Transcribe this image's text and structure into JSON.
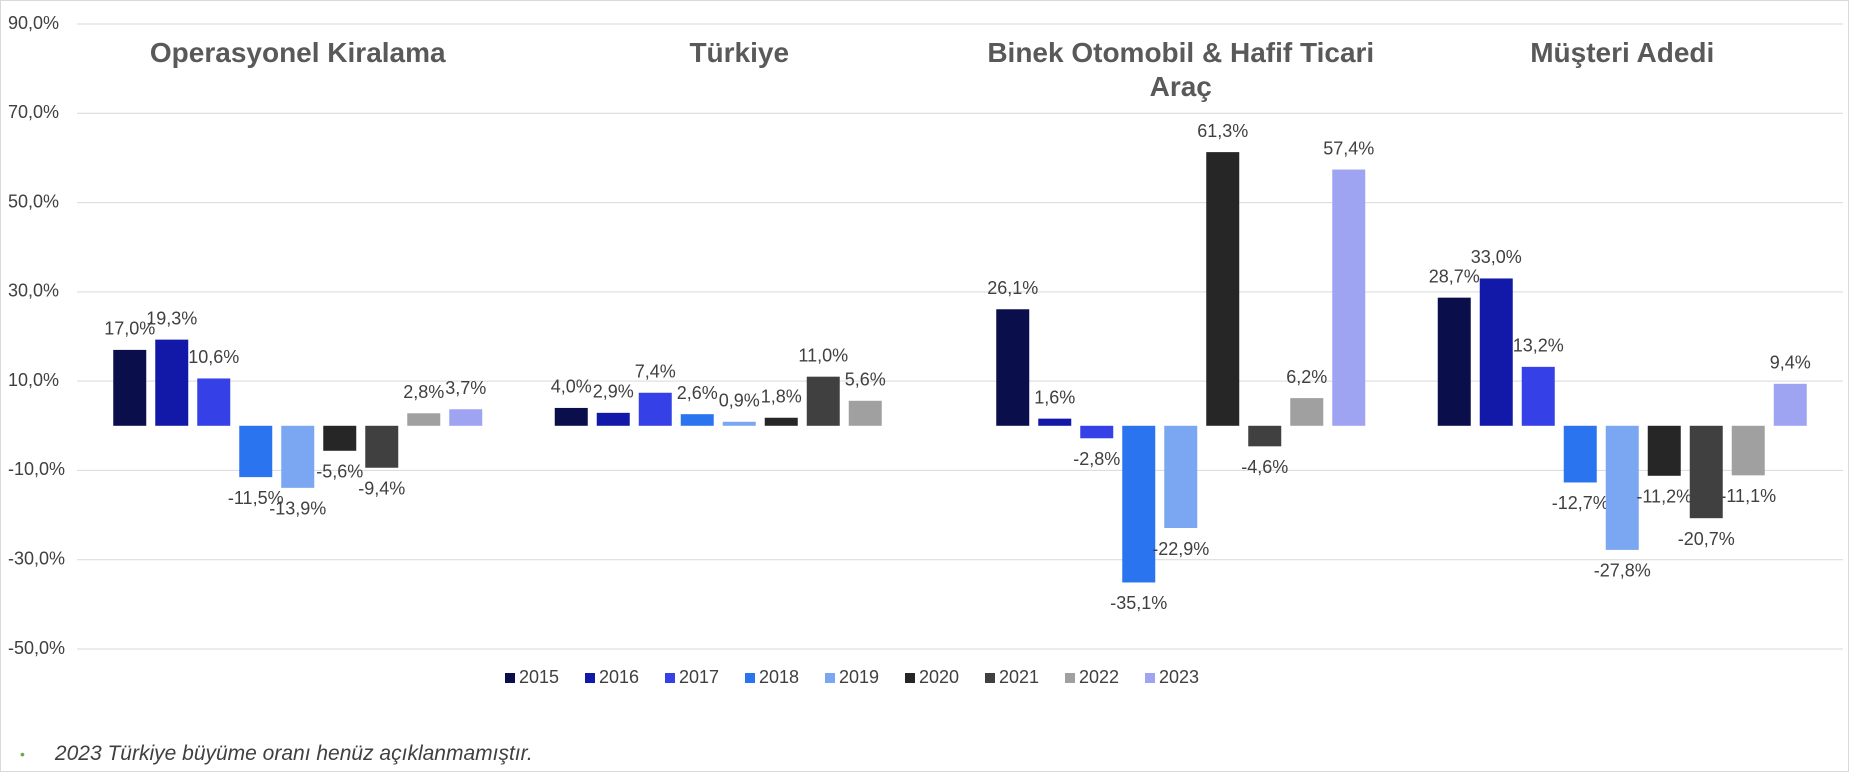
{
  "chart_data": {
    "type": "bar",
    "categories": [
      "Operasyonel Kiralama",
      "Türkiye",
      "Binek Otomobil & Hafif Ticari Araç",
      "Müşteri Adedi"
    ],
    "ylim": [
      -50,
      90
    ],
    "yticks": [
      {
        "value": -50,
        "label": "-50,0%"
      },
      {
        "value": -30,
        "label": "-30,0%"
      },
      {
        "value": -10,
        "label": "-10,0%"
      },
      {
        "value": 10,
        "label": "10,0%"
      },
      {
        "value": 30,
        "label": "30,0%"
      },
      {
        "value": 50,
        "label": "50,0%"
      },
      {
        "value": 70,
        "label": "70,0%"
      },
      {
        "value": 90,
        "label": "90,0%"
      }
    ],
    "grid": true,
    "legend": "bottom",
    "series": [
      {
        "name": "2015",
        "color": "#0a0e4a",
        "values": [
          17.0,
          4.0,
          26.1,
          28.7
        ],
        "value_labels": [
          "17,0%",
          "4,0%",
          "26,1%",
          "28,7%"
        ]
      },
      {
        "name": "2016",
        "color": "#1219a8",
        "values": [
          19.3,
          2.9,
          1.6,
          33.0
        ],
        "value_labels": [
          "19,3%",
          "2,9%",
          "1,6%",
          "33,0%"
        ]
      },
      {
        "name": "2017",
        "color": "#3540e6",
        "values": [
          10.6,
          7.4,
          -2.8,
          13.2
        ],
        "value_labels": [
          "10,6%",
          "7,4%",
          "-2,8%",
          "13,2%"
        ]
      },
      {
        "name": "2018",
        "color": "#2b74f0",
        "values": [
          -11.5,
          2.6,
          -35.1,
          -12.7
        ],
        "value_labels": [
          "-11,5%",
          "2,6%",
          "-35,1%",
          "-12,7%"
        ]
      },
      {
        "name": "2019",
        "color": "#7aa6f2",
        "values": [
          -13.9,
          0.9,
          -22.9,
          -27.8
        ],
        "value_labels": [
          "-13,9%",
          "0,9%",
          "-22,9%",
          "-27,8%"
        ]
      },
      {
        "name": "2020",
        "color": "#262626",
        "values": [
          -5.6,
          1.8,
          61.3,
          -11.2
        ],
        "value_labels": [
          "-5,6%",
          "1,8%",
          "61,3%",
          "-11,2%"
        ]
      },
      {
        "name": "2021",
        "color": "#404040",
        "values": [
          -9.4,
          11.0,
          -4.6,
          -20.7
        ],
        "value_labels": [
          "-9,4%",
          "11,0%",
          "-4,6%",
          "-20,7%"
        ]
      },
      {
        "name": "2022",
        "color": "#a0a0a0",
        "values": [
          2.8,
          5.6,
          6.2,
          -11.1
        ],
        "value_labels": [
          "2,8%",
          "5,6%",
          "6,2%",
          "-11,1%"
        ]
      },
      {
        "name": "2023",
        "color": "#9ea3f2",
        "values": [
          3.7,
          null,
          57.4,
          9.4
        ],
        "value_labels": [
          "3,7%",
          null,
          "57,4%",
          "9,4%"
        ]
      }
    ]
  },
  "note": "2023  Türkiye büyüme oranı henüz açıklanmamıştır."
}
